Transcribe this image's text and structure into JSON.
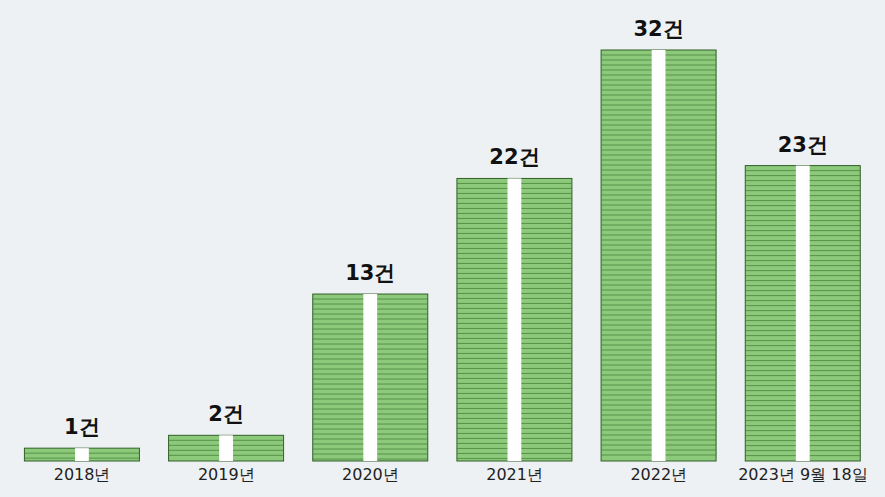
{
  "chart_data": {
    "type": "bar",
    "categories": [
      "2018년",
      "2019년",
      "2020년",
      "2021년",
      "2022년",
      "2023년 9월 18일"
    ],
    "values": [
      1,
      2,
      13,
      22,
      32,
      23
    ],
    "value_labels": [
      "1건",
      "2건",
      "13건",
      "22건",
      "32건",
      "23건"
    ],
    "color": "#8dc97b",
    "data_labels": true,
    "tick_labels": "x",
    "grid": false
  }
}
